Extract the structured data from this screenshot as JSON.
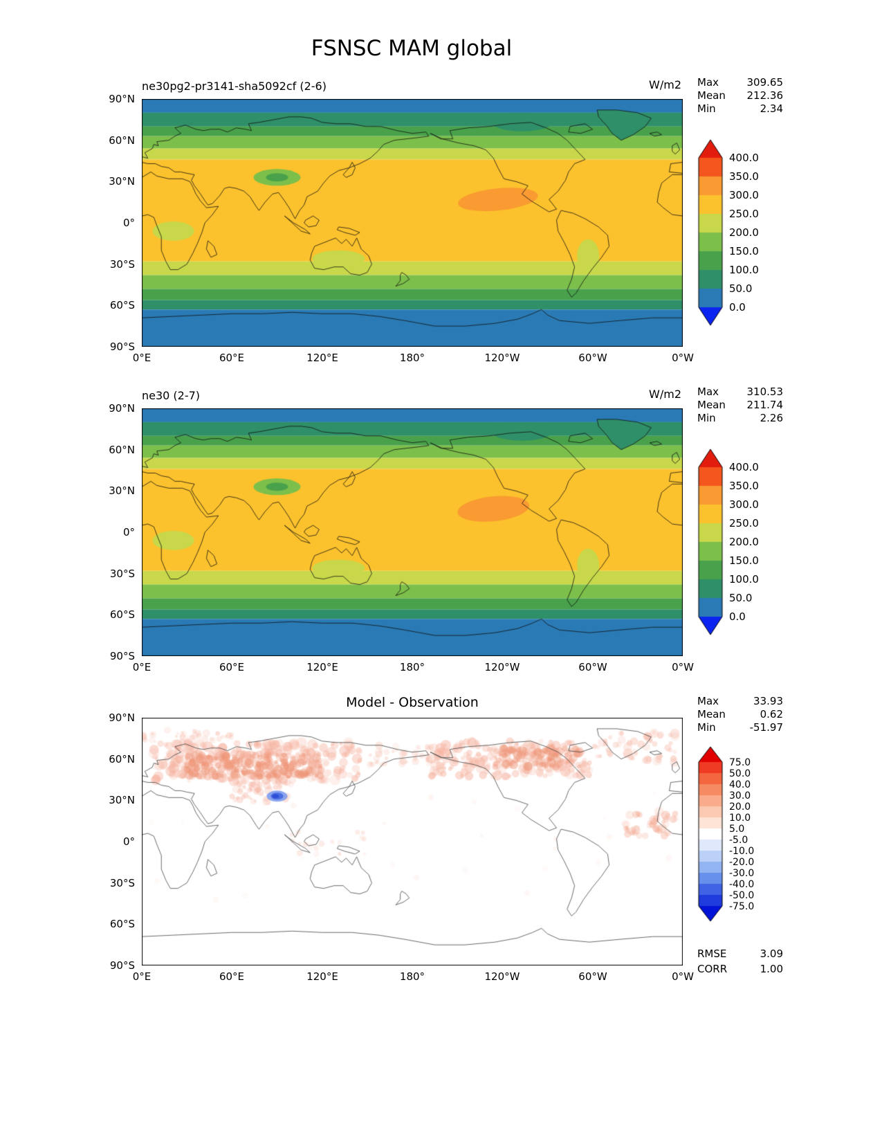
{
  "page_title": "FSNSC MAM global",
  "axes": {
    "lat_ticks": [
      "90°N",
      "60°N",
      "30°N",
      "0°",
      "30°S",
      "60°S",
      "90°S"
    ],
    "lon_ticks": [
      "0°E",
      "60°E",
      "120°E",
      "180°",
      "120°W",
      "60°W",
      "0°W"
    ]
  },
  "panels": [
    {
      "title": "ne30pg2-pr3141-sha5092cf (2-6)",
      "units": "W/m2",
      "stats": [
        {
          "label": "Max",
          "value": "309.65"
        },
        {
          "label": "Mean",
          "value": "212.36"
        },
        {
          "label": "Min",
          "value": "2.34"
        }
      ],
      "colorbar": {
        "levels": [
          "400.0",
          "350.0",
          "300.0",
          "250.0",
          "200.0",
          "150.0",
          "100.0",
          "50.0",
          "0.0"
        ],
        "colors": [
          "#e31d0e",
          "#f4561e",
          "#f99a32",
          "#fcc22d",
          "#c9d84a",
          "#7cbf4a",
          "#49a24b",
          "#2f8f68",
          "#2a7ab5",
          "#0b24f0"
        ]
      }
    },
    {
      "title": "ne30 (2-7)",
      "units": "W/m2",
      "stats": [
        {
          "label": "Max",
          "value": "310.53"
        },
        {
          "label": "Mean",
          "value": "211.74"
        },
        {
          "label": "Min",
          "value": "2.26"
        }
      ],
      "colorbar": {
        "levels": [
          "400.0",
          "350.0",
          "300.0",
          "250.0",
          "200.0",
          "150.0",
          "100.0",
          "50.0",
          "0.0"
        ],
        "colors": [
          "#e31d0e",
          "#f4561e",
          "#f99a32",
          "#fcc22d",
          "#c9d84a",
          "#7cbf4a",
          "#49a24b",
          "#2f8f68",
          "#2a7ab5",
          "#0b24f0"
        ]
      }
    },
    {
      "title": "Model - Observation",
      "stats": [
        {
          "label": "Max",
          "value": "33.93"
        },
        {
          "label": "Mean",
          "value": "0.62"
        },
        {
          "label": "Min",
          "value": "-51.97"
        }
      ],
      "colorbar": {
        "levels": [
          "75.0",
          "50.0",
          "40.0",
          "30.0",
          "20.0",
          "10.0",
          "5.0",
          "-5.0",
          "-10.0",
          "-20.0",
          "-30.0",
          "-40.0",
          "-50.0",
          "-75.0"
        ],
        "colors": [
          "#e10000",
          "#ef3b24",
          "#f4663f",
          "#f68b63",
          "#f9ab8b",
          "#fbc9b2",
          "#fde4d6",
          "#ffffff",
          "#dfe9fb",
          "#bcd1f7",
          "#93b4f2",
          "#6690ec",
          "#3f63e4",
          "#1f3bdc",
          "#0013d6"
        ]
      },
      "extra": [
        {
          "label": "RMSE",
          "value": "3.09"
        },
        {
          "label": "CORR",
          "value": "1.00"
        }
      ]
    }
  ],
  "chart_data": [
    {
      "type": "heatmap",
      "title": "ne30pg2-pr3141-sha5092cf (2-6)",
      "variable": "FSNSC",
      "season": "MAM",
      "region": "global",
      "units": "W/m2",
      "stats": {
        "max": 309.65,
        "mean": 212.36,
        "min": 2.34
      },
      "contour_levels": [
        0,
        50,
        100,
        150,
        200,
        250,
        300,
        350,
        400
      ],
      "lon_range": [
        0,
        360
      ],
      "lat_range": [
        -90,
        90
      ],
      "zonal_mean_estimate": {
        "lat": [
          90,
          75,
          60,
          45,
          30,
          15,
          0,
          -15,
          -30,
          -45,
          -60,
          -75,
          -90
        ],
        "value": [
          30,
          75,
          150,
          230,
          275,
          285,
          270,
          265,
          235,
          165,
          95,
          45,
          35
        ]
      }
    },
    {
      "type": "heatmap",
      "title": "ne30 (2-7)",
      "variable": "FSNSC",
      "season": "MAM",
      "region": "global",
      "units": "W/m2",
      "stats": {
        "max": 310.53,
        "mean": 211.74,
        "min": 2.26
      },
      "contour_levels": [
        0,
        50,
        100,
        150,
        200,
        250,
        300,
        350,
        400
      ],
      "lon_range": [
        0,
        360
      ],
      "lat_range": [
        -90,
        90
      ],
      "zonal_mean_estimate": {
        "lat": [
          90,
          75,
          60,
          45,
          30,
          15,
          0,
          -15,
          -30,
          -45,
          -60,
          -75,
          -90
        ],
        "value": [
          30,
          75,
          150,
          230,
          275,
          285,
          270,
          265,
          235,
          165,
          95,
          45,
          35
        ]
      }
    },
    {
      "type": "heatmap",
      "title": "Model - Observation",
      "variable": "FSNSC difference",
      "units": "W/m2",
      "stats": {
        "max": 33.93,
        "mean": 0.62,
        "min": -51.97,
        "rmse": 3.09,
        "corr": 1.0
      },
      "contour_levels": [
        -75,
        -50,
        -40,
        -30,
        -20,
        -10,
        -5,
        5,
        10,
        20,
        30,
        40,
        50,
        75
      ],
      "notes": "mostly near zero; weak positive (red) anomalies over northern mid/high-latitude land; localized negative (blue) anomaly over the Tibetan Plateau"
    }
  ]
}
